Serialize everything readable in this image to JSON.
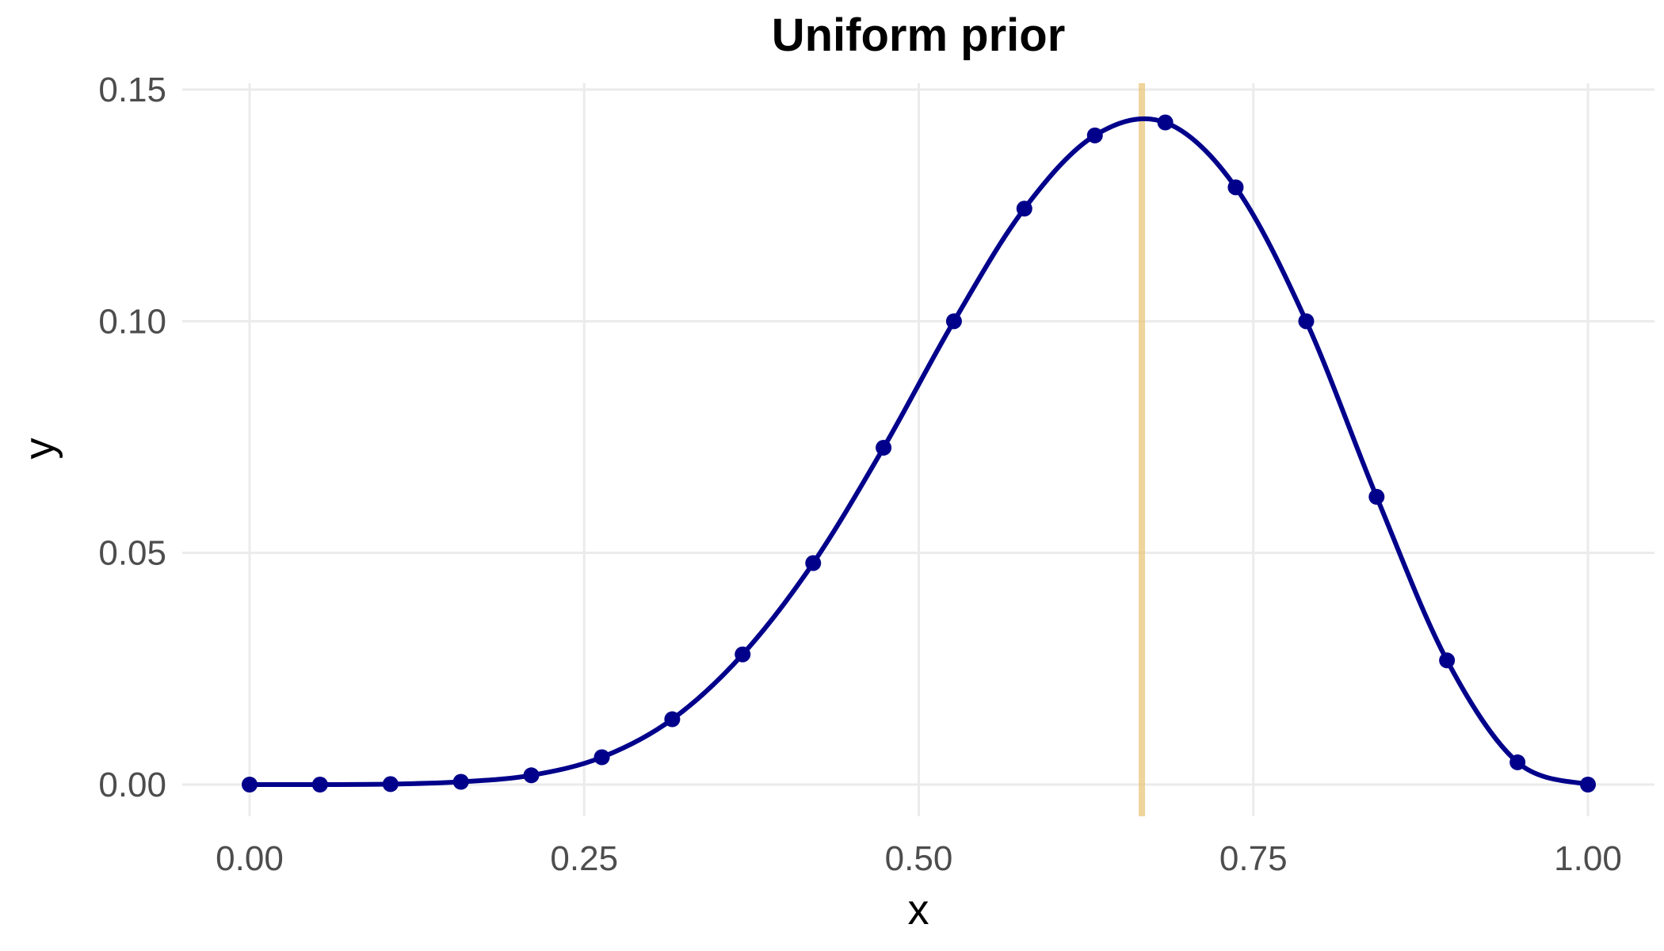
{
  "chart_data": {
    "type": "line",
    "title": "Uniform prior",
    "xlabel": "x",
    "ylabel": "y",
    "xlim": [
      0,
      1
    ],
    "ylim": [
      0,
      0.15
    ],
    "x_ticks": [
      "0.00",
      "0.25",
      "0.50",
      "0.75",
      "1.00"
    ],
    "y_ticks": [
      "0.00",
      "0.05",
      "0.10",
      "0.15"
    ],
    "grid": true,
    "legend": "none",
    "series": [
      {
        "color": "#00008b",
        "x": [
          0.0,
          0.0526,
          0.1053,
          0.1579,
          0.2105,
          0.2632,
          0.3158,
          0.3684,
          0.4211,
          0.4737,
          0.5263,
          0.5789,
          0.6316,
          0.6842,
          0.7368,
          0.7895,
          0.8421,
          0.8947,
          0.9474,
          1.0
        ],
        "y": [
          0.0,
          0.0,
          0.0001,
          0.0006,
          0.002,
          0.0059,
          0.0141,
          0.0281,
          0.0478,
          0.0727,
          0.1,
          0.1243,
          0.1401,
          0.1429,
          0.1289,
          0.1,
          0.0621,
          0.0268,
          0.0048,
          0.0
        ]
      }
    ],
    "vline": {
      "x": 0.6667,
      "color": "#e9c579"
    }
  }
}
